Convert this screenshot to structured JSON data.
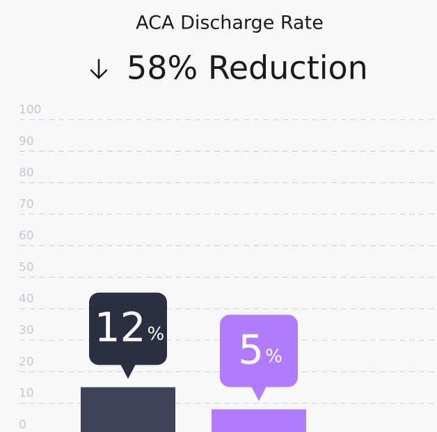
{
  "chart_data": {
    "type": "bar",
    "title": "ACA Discharge Rate",
    "subtitle": "58% Reduction",
    "categories": [
      null,
      null
    ],
    "values": [
      12,
      5
    ],
    "value_unit": "%",
    "colors": [
      "#3f4358",
      "#b07bff"
    ],
    "label_colors": [
      "#2b2f42",
      "#b07bff"
    ],
    "ylim": [
      0,
      100
    ],
    "yticks": [
      0,
      10,
      20,
      30,
      40,
      50,
      60,
      70,
      80,
      90,
      100
    ],
    "grid": true
  }
}
